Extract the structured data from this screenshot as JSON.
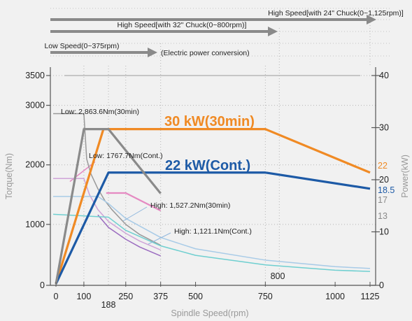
{
  "chart_data": {
    "type": "line",
    "xlabel": "Spindle Speed(rpm)",
    "ylabel": "Torque(Nm)",
    "y2label": "Power(kW)",
    "x_ticks": [
      "0",
      "100",
      "250",
      "375",
      "500",
      "750",
      "1000",
      "1125"
    ],
    "x_ticks_below": [
      "188"
    ],
    "x_tick_values": [
      0,
      100,
      250,
      375,
      500,
      750,
      1000,
      1125,
      188
    ],
    "xlim": [
      -25,
      1130
    ],
    "ylim": [
      0,
      3650
    ],
    "y_ticks": [
      "0",
      "1000",
      "2000",
      "3000",
      "3500"
    ],
    "y_tick_values": [
      0,
      1000,
      2000,
      3000,
      3500
    ],
    "y2_ticks": [
      "0",
      "10",
      "20",
      "30",
      "40"
    ],
    "y2_tick_values": [
      0,
      10,
      20,
      30,
      40
    ],
    "y2lim": [
      0,
      41.7
    ],
    "side_values": [
      {
        "label": "22",
        "power": 22,
        "color": "#f08a24"
      },
      {
        "label": "18.5",
        "power": 18.5,
        "color": "#1d5aa6"
      },
      {
        "label": "17",
        "power": 17,
        "color": "#8a8a8a"
      },
      {
        "label": "13",
        "power": 13,
        "color": "#8a8a8a"
      }
    ],
    "bottom_note": "800",
    "range_arrows": [
      {
        "label": "High Speed[with 24\" Chuck(0~1,125rpm)]",
        "end_rpm": 1125
      },
      {
        "label": "High Speed[with 32\" Chuck(0~800rpm)]",
        "end_rpm": 800
      },
      {
        "label": "Low Speed(0~375rpm)",
        "end_rpm": 375
      }
    ],
    "arrow_note": "(Electric power conversion)",
    "annotations": [
      {
        "text": "30 kW(30min)",
        "color": "#f08a24"
      },
      {
        "text": "22 kW(Cont.)",
        "color": "#1d5aa6"
      },
      {
        "text": "Low: 2,863.6Nm(30min)"
      },
      {
        "text": "Low: 1767.7Nm(Cont.)"
      },
      {
        "text": "High: 1,527.2Nm(30min)"
      },
      {
        "text": "High: 1,121.1Nm(Cont.)"
      }
    ],
    "series": [
      {
        "axis": "power",
        "color": "#f08a24",
        "width": 3.2,
        "points": [
          [
            0,
            0
          ],
          [
            170,
            2600
          ],
          [
            750,
            2600
          ],
          [
            1125,
            1870
          ]
        ]
      },
      {
        "axis": "power",
        "color": "#1d5aa6",
        "width": 3.2,
        "points": [
          [
            0,
            0
          ],
          [
            188,
            1870
          ],
          [
            750,
            1870
          ],
          [
            1125,
            1600
          ]
        ]
      },
      {
        "axis": "power",
        "color": "#8a8a8a",
        "width": 3.2,
        "points": [
          [
            0,
            0
          ],
          [
            100,
            2600
          ],
          [
            188,
            2600
          ],
          [
            375,
            1520
          ]
        ]
      },
      {
        "axis": "torque",
        "color": "#999999",
        "width": 1.5,
        "points": [
          [
            -10,
            2860
          ],
          [
            100,
            2860
          ],
          [
            110,
            2100
          ],
          [
            125,
            1850
          ],
          [
            150,
            1600
          ],
          [
            175,
            1400
          ],
          [
            200,
            1250
          ],
          [
            250,
            1000
          ],
          [
            300,
            830
          ],
          [
            375,
            650
          ]
        ]
      },
      {
        "axis": "torque",
        "color": "#cfa4d8",
        "width": 1.5,
        "points": [
          [
            -10,
            1770
          ],
          [
            100,
            1770
          ],
          [
            120,
            1500
          ],
          [
            150,
            1250
          ],
          [
            188,
            1050
          ],
          [
            250,
            850
          ],
          [
            300,
            720
          ],
          [
            375,
            570
          ]
        ]
      },
      {
        "axis": "torque",
        "color": "#9b6cc0",
        "width": 1.5,
        "points": [
          [
            150,
            1160
          ],
          [
            188,
            950
          ],
          [
            250,
            750
          ],
          [
            300,
            620
          ],
          [
            375,
            470
          ]
        ]
      },
      {
        "axis": "torque",
        "color": "#e58ac2",
        "width": 2.2,
        "points": [
          [
            180,
            1527
          ],
          [
            250,
            1527
          ],
          [
            375,
            1230
          ]
        ]
      },
      {
        "axis": "torque",
        "color": "#a8cbe7",
        "width": 1.5,
        "points": [
          [
            -10,
            1470
          ],
          [
            150,
            1470
          ],
          [
            188,
            1350
          ],
          [
            250,
            1100
          ],
          [
            375,
            780
          ],
          [
            500,
            590
          ],
          [
            750,
            400
          ],
          [
            1000,
            290
          ],
          [
            1125,
            260
          ]
        ]
      },
      {
        "axis": "torque",
        "color": "#6fcfd0",
        "width": 1.5,
        "points": [
          [
            -10,
            1170
          ],
          [
            188,
            1121
          ],
          [
            250,
            900
          ],
          [
            375,
            640
          ],
          [
            500,
            480
          ],
          [
            750,
            320
          ],
          [
            1000,
            230
          ],
          [
            1125,
            210
          ]
        ]
      }
    ],
    "pink_short": [
      [
        50,
        1720
      ],
      [
        140,
        2050
      ]
    ]
  }
}
